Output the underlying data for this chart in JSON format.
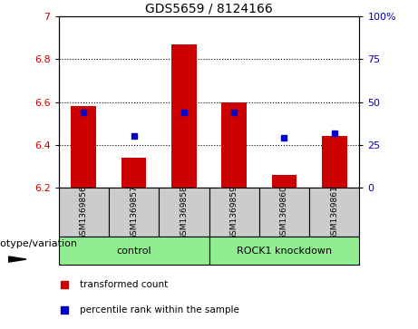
{
  "title": "GDS5659 / 8124166",
  "samples": [
    "GSM1369856",
    "GSM1369857",
    "GSM1369858",
    "GSM1369859",
    "GSM1369860",
    "GSM1369861"
  ],
  "bar_values": [
    6.58,
    6.34,
    6.87,
    6.6,
    6.26,
    6.44
  ],
  "bar_base": 6.2,
  "percentile_ranks": [
    44,
    30,
    44,
    44,
    29,
    32
  ],
  "ylim_left": [
    6.2,
    7.0
  ],
  "ylim_right": [
    0,
    100
  ],
  "yticks_left": [
    6.2,
    6.4,
    6.6,
    6.8,
    7.0
  ],
  "yticks_right": [
    0,
    25,
    50,
    75,
    100
  ],
  "ytick_labels_left": [
    "6.2",
    "6.4",
    "6.6",
    "6.8",
    "7"
  ],
  "ytick_labels_right": [
    "0",
    "25",
    "50",
    "75",
    "100%"
  ],
  "bar_color": "#cc0000",
  "dot_color": "#0000cc",
  "bar_width": 0.5,
  "genotype_label": "genotype/variation",
  "legend_bar_label": "transformed count",
  "legend_dot_label": "percentile rank within the sample",
  "sample_box_color": "#cccccc",
  "group_box_color": "#90ee90",
  "title_fontsize": 10,
  "tick_fontsize": 8,
  "sample_fontsize": 6.5,
  "group_fontsize": 8,
  "legend_fontsize": 7.5,
  "geno_fontsize": 8
}
